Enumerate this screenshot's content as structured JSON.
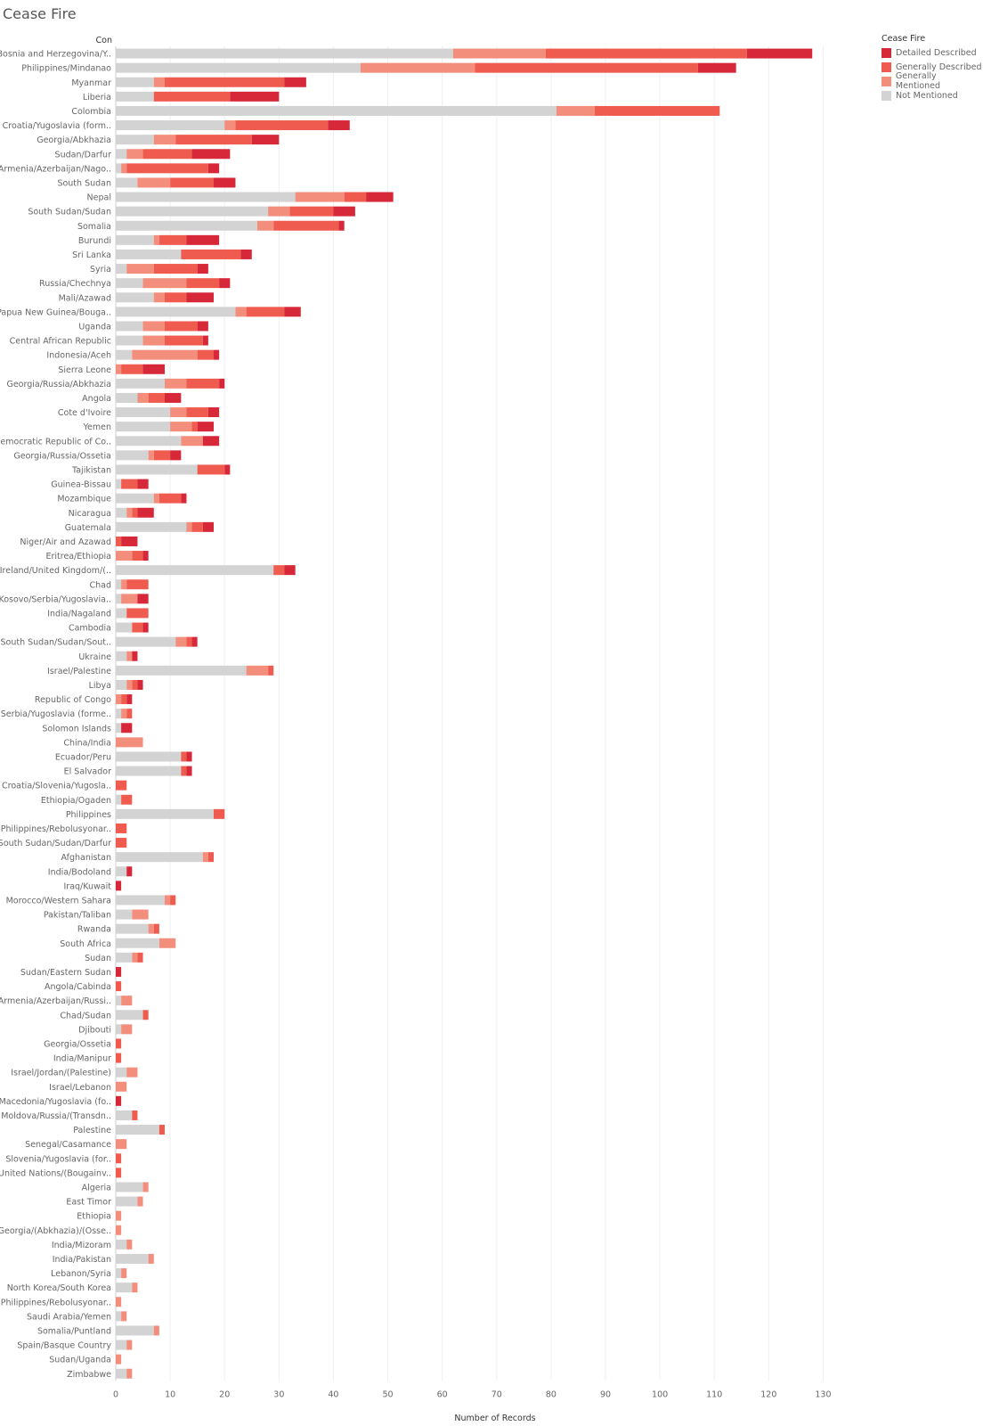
{
  "title": "Cease Fire",
  "chart_data": {
    "type": "bar",
    "orientation": "horizontal",
    "stacked": true,
    "title": "Cease Fire",
    "ylabel": "Con",
    "xlabel": "Number of Records",
    "xlim": [
      0,
      135
    ],
    "xticks": [
      0,
      10,
      20,
      30,
      40,
      50,
      60,
      70,
      80,
      90,
      100,
      110,
      120,
      130
    ],
    "grid": true,
    "legend": {
      "title": "Cease Fire",
      "position": "top-right"
    },
    "series": [
      {
        "name": "Not Mentioned",
        "color": "#d3d3d3"
      },
      {
        "name": "Generally Mentioned",
        "color": "#f28e7b"
      },
      {
        "name": "Generally Described",
        "color": "#ef5b4f"
      },
      {
        "name": "Detailed Described",
        "color": "#d62839"
      }
    ],
    "legend_order": [
      "Detailed Described",
      "Generally Described",
      "Generally Mentioned",
      "Not Mentioned"
    ],
    "rows": [
      {
        "label": "Bosnia and Herzegovina/Y..",
        "v": [
          62,
          17,
          37,
          12
        ]
      },
      {
        "label": "Philippines/Mindanao",
        "v": [
          45,
          21,
          41,
          7
        ]
      },
      {
        "label": "Myanmar",
        "v": [
          7,
          2,
          22,
          4
        ]
      },
      {
        "label": "Liberia",
        "v": [
          7,
          0,
          14,
          9
        ]
      },
      {
        "label": "Colombia",
        "v": [
          81,
          7,
          23,
          0
        ]
      },
      {
        "label": "Croatia/Yugoslavia (form..",
        "v": [
          20,
          2,
          17,
          4
        ]
      },
      {
        "label": "Georgia/Abkhazia",
        "v": [
          7,
          4,
          14,
          5
        ]
      },
      {
        "label": "Sudan/Darfur",
        "v": [
          2,
          3,
          9,
          7
        ]
      },
      {
        "label": "Armenia/Azerbaijan/Nago..",
        "v": [
          1,
          1,
          15,
          2
        ]
      },
      {
        "label": "South Sudan",
        "v": [
          4,
          6,
          8,
          4
        ]
      },
      {
        "label": "Nepal",
        "v": [
          33,
          9,
          4,
          5
        ]
      },
      {
        "label": "South Sudan/Sudan",
        "v": [
          28,
          4,
          8,
          4
        ]
      },
      {
        "label": "Somalia",
        "v": [
          26,
          3,
          12,
          1
        ]
      },
      {
        "label": "Burundi",
        "v": [
          7,
          1,
          5,
          6
        ]
      },
      {
        "label": "Sri Lanka",
        "v": [
          12,
          0,
          11,
          2
        ]
      },
      {
        "label": "Syria",
        "v": [
          2,
          5,
          8,
          2
        ]
      },
      {
        "label": "Russia/Chechnya",
        "v": [
          5,
          8,
          6,
          2
        ]
      },
      {
        "label": "Mali/Azawad",
        "v": [
          7,
          2,
          4,
          5
        ]
      },
      {
        "label": "Papua New Guinea/Bouga..",
        "v": [
          22,
          2,
          7,
          3
        ]
      },
      {
        "label": "Uganda",
        "v": [
          5,
          4,
          6,
          2
        ]
      },
      {
        "label": "Central African Republic",
        "v": [
          5,
          4,
          7,
          1
        ]
      },
      {
        "label": "Indonesia/Aceh",
        "v": [
          3,
          12,
          3,
          1
        ]
      },
      {
        "label": "Sierra Leone",
        "v": [
          0,
          1,
          4,
          4
        ]
      },
      {
        "label": "Georgia/Russia/Abkhazia",
        "v": [
          9,
          4,
          6,
          1
        ]
      },
      {
        "label": "Angola",
        "v": [
          4,
          2,
          3,
          3
        ]
      },
      {
        "label": "Cote d'Ivoire",
        "v": [
          10,
          3,
          4,
          2
        ]
      },
      {
        "label": "Yemen",
        "v": [
          10,
          4,
          1,
          3
        ]
      },
      {
        "label": "Democratic Republic of Co..",
        "v": [
          12,
          4,
          0,
          3
        ]
      },
      {
        "label": "Georgia/Russia/Ossetia",
        "v": [
          6,
          1,
          3,
          2
        ]
      },
      {
        "label": "Tajikistan",
        "v": [
          15,
          0,
          5,
          1
        ]
      },
      {
        "label": "Guinea-Bissau",
        "v": [
          1,
          0,
          3,
          2
        ]
      },
      {
        "label": "Mozambique",
        "v": [
          7,
          1,
          4,
          1
        ]
      },
      {
        "label": "Nicaragua",
        "v": [
          2,
          1,
          1,
          3
        ]
      },
      {
        "label": "Guatemala",
        "v": [
          13,
          1,
          2,
          2
        ]
      },
      {
        "label": "Niger/Air and Azawad",
        "v": [
          0,
          0,
          1,
          3
        ]
      },
      {
        "label": "Eritrea/Ethiopia",
        "v": [
          0,
          3,
          2,
          1
        ]
      },
      {
        "label": "Ireland/United Kingdom/(..",
        "v": [
          29,
          0,
          2,
          2
        ]
      },
      {
        "label": "Chad",
        "v": [
          1,
          1,
          4,
          0
        ]
      },
      {
        "label": "Kosovo/Serbia/Yugoslavia..",
        "v": [
          1,
          3,
          0,
          2
        ]
      },
      {
        "label": "India/Nagaland",
        "v": [
          2,
          0,
          4,
          0
        ]
      },
      {
        "label": "Cambodia",
        "v": [
          3,
          0,
          2,
          1
        ]
      },
      {
        "label": "South Sudan/Sudan/Sout..",
        "v": [
          11,
          2,
          1,
          1
        ]
      },
      {
        "label": "Ukraine",
        "v": [
          2,
          1,
          0,
          1
        ]
      },
      {
        "label": "Israel/Palestine",
        "v": [
          24,
          4,
          1,
          0
        ]
      },
      {
        "label": "Libya",
        "v": [
          2,
          1,
          1,
          1
        ]
      },
      {
        "label": "Republic of Congo",
        "v": [
          0,
          1,
          1,
          1
        ]
      },
      {
        "label": "Serbia/Yugoslavia (forme..",
        "v": [
          1,
          1,
          1,
          0
        ]
      },
      {
        "label": "Solomon Islands",
        "v": [
          1,
          0,
          0,
          2
        ]
      },
      {
        "label": "China/India",
        "v": [
          0,
          5,
          0,
          0
        ]
      },
      {
        "label": "Ecuador/Peru",
        "v": [
          12,
          0,
          1,
          1
        ]
      },
      {
        "label": "El Salvador",
        "v": [
          12,
          0,
          1,
          1
        ]
      },
      {
        "label": "Croatia/Slovenia/Yugosla..",
        "v": [
          0,
          0,
          2,
          0
        ]
      },
      {
        "label": "Ethiopia/Ogaden",
        "v": [
          1,
          0,
          2,
          0
        ]
      },
      {
        "label": "Philippines",
        "v": [
          18,
          0,
          2,
          0
        ]
      },
      {
        "label": "Philippines/Rebolusyonar..",
        "v": [
          0,
          0,
          2,
          0
        ]
      },
      {
        "label": "South Sudan/Sudan/Darfur",
        "v": [
          0,
          0,
          2,
          0
        ]
      },
      {
        "label": "Afghanistan",
        "v": [
          16,
          1,
          1,
          0
        ]
      },
      {
        "label": "India/Bodoland",
        "v": [
          2,
          0,
          0,
          1
        ]
      },
      {
        "label": "Iraq/Kuwait",
        "v": [
          0,
          0,
          0,
          1
        ]
      },
      {
        "label": "Morocco/Western Sahara",
        "v": [
          9,
          1,
          1,
          0
        ]
      },
      {
        "label": "Pakistan/Taliban",
        "v": [
          3,
          3,
          0,
          0
        ]
      },
      {
        "label": "Rwanda",
        "v": [
          6,
          1,
          1,
          0
        ]
      },
      {
        "label": "South Africa",
        "v": [
          8,
          3,
          0,
          0
        ]
      },
      {
        "label": "Sudan",
        "v": [
          3,
          1,
          1,
          0
        ]
      },
      {
        "label": "Sudan/Eastern Sudan",
        "v": [
          0,
          0,
          0,
          1
        ]
      },
      {
        "label": "Angola/Cabinda",
        "v": [
          0,
          0,
          1,
          0
        ]
      },
      {
        "label": "Armenia/Azerbaijan/Russi..",
        "v": [
          1,
          2,
          0,
          0
        ]
      },
      {
        "label": "Chad/Sudan",
        "v": [
          5,
          0,
          1,
          0
        ]
      },
      {
        "label": "Djibouti",
        "v": [
          1,
          2,
          0,
          0
        ]
      },
      {
        "label": "Georgia/Ossetia",
        "v": [
          0,
          0,
          1,
          0
        ]
      },
      {
        "label": "India/Manipur",
        "v": [
          0,
          0,
          1,
          0
        ]
      },
      {
        "label": "Israel/Jordan/(Palestine)",
        "v": [
          2,
          2,
          0,
          0
        ]
      },
      {
        "label": "Israel/Lebanon",
        "v": [
          0,
          2,
          0,
          0
        ]
      },
      {
        "label": "Macedonia/Yugoslavia (fo..",
        "v": [
          0,
          0,
          0,
          1
        ]
      },
      {
        "label": "Moldova/Russia/(Transdn..",
        "v": [
          3,
          0,
          1,
          0
        ]
      },
      {
        "label": "Palestine",
        "v": [
          8,
          0,
          1,
          0
        ]
      },
      {
        "label": "Senegal/Casamance",
        "v": [
          0,
          2,
          0,
          0
        ]
      },
      {
        "label": "Slovenia/Yugoslavia (for..",
        "v": [
          0,
          0,
          1,
          0
        ]
      },
      {
        "label": "United Nations/(Bougainv..",
        "v": [
          0,
          0,
          1,
          0
        ]
      },
      {
        "label": "Algeria",
        "v": [
          5,
          1,
          0,
          0
        ]
      },
      {
        "label": "East Timor",
        "v": [
          4,
          1,
          0,
          0
        ]
      },
      {
        "label": "Ethiopia",
        "v": [
          0,
          1,
          0,
          0
        ]
      },
      {
        "label": "Georgia/(Abkhazia)/(Osse..",
        "v": [
          0,
          1,
          0,
          0
        ]
      },
      {
        "label": "India/Mizoram",
        "v": [
          2,
          1,
          0,
          0
        ]
      },
      {
        "label": "India/Pakistan",
        "v": [
          6,
          1,
          0,
          0
        ]
      },
      {
        "label": "Lebanon/Syria",
        "v": [
          1,
          1,
          0,
          0
        ]
      },
      {
        "label": "North Korea/South Korea",
        "v": [
          3,
          1,
          0,
          0
        ]
      },
      {
        "label": "Philippines/Rebolusyonar..",
        "v": [
          0,
          1,
          0,
          0
        ]
      },
      {
        "label": "Saudi Arabia/Yemen",
        "v": [
          1,
          1,
          0,
          0
        ]
      },
      {
        "label": "Somalia/Puntland",
        "v": [
          7,
          1,
          0,
          0
        ]
      },
      {
        "label": "Spain/Basque Country",
        "v": [
          2,
          1,
          0,
          0
        ]
      },
      {
        "label": "Sudan/Uganda",
        "v": [
          0,
          1,
          0,
          0
        ]
      },
      {
        "label": "Zimbabwe",
        "v": [
          2,
          1,
          0,
          0
        ]
      }
    ]
  }
}
